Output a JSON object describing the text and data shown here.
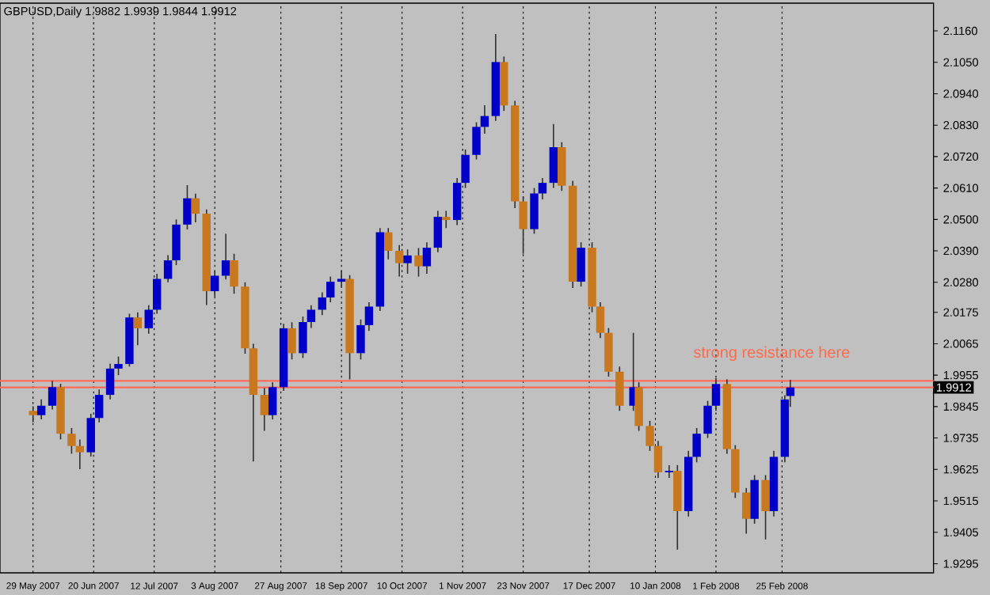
{
  "chart_data": {
    "type": "candlestick",
    "title": "GBPUSD,Daily 1.9882 1.9939 1.9844 1.9912",
    "x": [
      "2007-05-29",
      "2007-06-01",
      "2007-06-05",
      "2007-06-08",
      "2007-06-12",
      "2007-06-15",
      "2007-06-19",
      "2007-06-22",
      "2007-06-26",
      "2007-06-29",
      "2007-07-03",
      "2007-07-06",
      "2007-07-10",
      "2007-07-13",
      "2007-07-17",
      "2007-07-20",
      "2007-07-24",
      "2007-07-27",
      "2007-07-31",
      "2007-08-03",
      "2007-08-07",
      "2007-08-10",
      "2007-08-14",
      "2007-08-17",
      "2007-08-21",
      "2007-08-24",
      "2007-08-28",
      "2007-08-31",
      "2007-09-04",
      "2007-09-07",
      "2007-09-11",
      "2007-09-14",
      "2007-09-18",
      "2007-09-21",
      "2007-09-25",
      "2007-09-28",
      "2007-10-02",
      "2007-10-05",
      "2007-10-09",
      "2007-10-12",
      "2007-10-16",
      "2007-10-19",
      "2007-10-23",
      "2007-10-26",
      "2007-10-30",
      "2007-11-02",
      "2007-11-06",
      "2007-11-09",
      "2007-11-13",
      "2007-11-16",
      "2007-11-20",
      "2007-11-23",
      "2007-11-27",
      "2007-11-30",
      "2007-12-04",
      "2007-12-07",
      "2007-12-11",
      "2007-12-14",
      "2007-12-18",
      "2007-12-21",
      "2007-12-24",
      "2007-12-28",
      "2008-01-02",
      "2008-01-04",
      "2008-01-08",
      "2008-01-11",
      "2008-01-15",
      "2008-01-18",
      "2008-01-22",
      "2008-01-25",
      "2008-01-29",
      "2008-02-01",
      "2008-02-05",
      "2008-02-08",
      "2008-02-12",
      "2008-02-15",
      "2008-02-19",
      "2008-02-22",
      "2008-02-26",
      "2008-02-28"
    ],
    "ohlc": [
      [
        1.983,
        1.9846,
        1.979,
        1.9815
      ],
      [
        1.9815,
        1.987,
        1.98,
        1.9848
      ],
      [
        1.9848,
        1.9935,
        1.9835,
        1.9913
      ],
      [
        1.9913,
        1.9925,
        1.973,
        1.975
      ],
      [
        1.975,
        1.977,
        1.968,
        1.9707
      ],
      [
        1.9707,
        1.973,
        1.9626,
        1.9685
      ],
      [
        1.9685,
        1.982,
        1.967,
        1.9805
      ],
      [
        1.9805,
        1.9905,
        1.979,
        1.9886
      ],
      [
        1.9886,
        1.9995,
        1.987,
        1.9978
      ],
      [
        1.9978,
        2.002,
        1.9955,
        1.9994
      ],
      [
        1.9994,
        2.017,
        1.9985,
        2.0157
      ],
      [
        2.0157,
        2.0175,
        2.006,
        2.0119
      ],
      [
        2.0119,
        2.02,
        2.01,
        2.0184
      ],
      [
        2.0184,
        2.031,
        2.017,
        2.0292
      ],
      [
        2.0292,
        2.0375,
        2.028,
        2.0357
      ],
      [
        2.0357,
        2.05,
        2.034,
        2.0482
      ],
      [
        2.0482,
        2.062,
        2.0465,
        2.0574
      ],
      [
        2.0574,
        2.059,
        2.049,
        2.052
      ],
      [
        2.052,
        2.0535,
        2.02,
        2.0249
      ],
      [
        2.0249,
        2.032,
        2.023,
        2.0303
      ],
      [
        2.0303,
        2.045,
        2.029,
        2.0357
      ],
      [
        2.0357,
        2.038,
        2.024,
        2.0265
      ],
      [
        2.0265,
        2.028,
        2.003,
        2.0049
      ],
      [
        2.0049,
        2.0065,
        1.9653,
        1.9886
      ],
      [
        1.9886,
        1.991,
        1.976,
        1.9815
      ],
      [
        1.9815,
        1.993,
        1.98,
        1.9913
      ],
      [
        1.9913,
        2.0135,
        1.99,
        2.0119
      ],
      [
        2.0119,
        2.014,
        2.001,
        2.0032
      ],
      [
        2.0032,
        2.016,
        2.0015,
        2.0141
      ],
      [
        2.0141,
        2.02,
        2.012,
        2.0184
      ],
      [
        2.0184,
        2.0245,
        2.0165,
        2.0227
      ],
      [
        2.0227,
        2.03,
        2.021,
        2.0282
      ],
      [
        2.0282,
        2.032,
        2.0265,
        2.0292
      ],
      [
        2.0292,
        2.0305,
        1.994,
        2.0032
      ],
      [
        2.0032,
        2.015,
        2.001,
        2.013
      ],
      [
        2.013,
        2.021,
        2.011,
        2.0195
      ],
      [
        2.0195,
        2.047,
        2.018,
        2.0455
      ],
      [
        2.0455,
        2.047,
        2.036,
        2.039
      ],
      [
        2.039,
        2.041,
        2.03,
        2.0347
      ],
      [
        2.0347,
        2.0395,
        2.031,
        2.0374
      ],
      [
        2.0374,
        2.04,
        2.03,
        2.0336
      ],
      [
        2.0336,
        2.042,
        2.031,
        2.0401
      ],
      [
        2.0401,
        2.053,
        2.0385,
        2.0509
      ],
      [
        2.0509,
        2.053,
        2.047,
        2.0498
      ],
      [
        2.0498,
        2.0645,
        2.048,
        2.0628
      ],
      [
        2.0628,
        2.0745,
        2.061,
        2.0726
      ],
      [
        2.0726,
        2.084,
        2.071,
        2.0824
      ],
      [
        2.0824,
        2.09,
        2.08,
        2.0862
      ],
      [
        2.0862,
        2.1149,
        2.0845,
        2.1051
      ],
      [
        2.1051,
        2.107,
        2.088,
        2.0899
      ],
      [
        2.0899,
        2.0915,
        2.054,
        2.0563
      ],
      [
        2.0563,
        2.058,
        2.038,
        2.0466
      ],
      [
        2.0466,
        2.061,
        2.045,
        2.0591
      ],
      [
        2.0591,
        2.0645,
        2.057,
        2.0628
      ],
      [
        2.0628,
        2.0834,
        2.061,
        2.0753
      ],
      [
        2.0753,
        2.077,
        2.06,
        2.0618
      ],
      [
        2.0618,
        2.0635,
        2.026,
        2.0282
      ],
      [
        2.0282,
        2.042,
        2.0265,
        2.0401
      ],
      [
        2.0401,
        2.042,
        2.0175,
        2.0195
      ],
      [
        2.0195,
        2.021,
        2.0085,
        2.0103
      ],
      [
        2.0103,
        2.012,
        1.995,
        1.9967
      ],
      [
        1.9967,
        1.9985,
        1.983,
        1.9848
      ],
      [
        1.9848,
        2.0103,
        1.983,
        1.9913
      ],
      [
        1.9913,
        1.993,
        1.976,
        1.9777
      ],
      [
        1.9777,
        1.9795,
        1.969,
        1.9707
      ],
      [
        1.9707,
        1.9725,
        1.9595,
        1.9615
      ],
      [
        1.9615,
        1.964,
        1.9595,
        1.962
      ],
      [
        1.962,
        1.964,
        1.9344,
        1.9479
      ],
      [
        1.9479,
        1.969,
        1.946,
        1.9669
      ],
      [
        1.9669,
        1.977,
        1.965,
        1.975
      ],
      [
        1.975,
        1.9865,
        1.9735,
        1.9848
      ],
      [
        1.9848,
        1.9945,
        1.983,
        1.9924
      ],
      [
        1.9924,
        1.994,
        1.968,
        1.9696
      ],
      [
        1.9696,
        1.971,
        1.9525,
        1.9544
      ],
      [
        1.9544,
        1.956,
        1.94,
        1.9452
      ],
      [
        1.9452,
        1.9605,
        1.9435,
        1.9588
      ],
      [
        1.9588,
        1.9605,
        1.938,
        1.9479
      ],
      [
        1.9479,
        1.969,
        1.946,
        1.9669
      ],
      [
        1.9669,
        1.9885,
        1.965,
        1.987
      ],
      [
        1.9882,
        1.9939,
        1.9844,
        1.9912
      ]
    ],
    "colors": [
      "#c8781e",
      "#0000c8",
      "#0000c8",
      "#c8781e",
      "#c8781e",
      "#c8781e",
      "#0000c8",
      "#0000c8",
      "#0000c8",
      "#0000c8",
      "#0000c8",
      "#c8781e",
      "#0000c8",
      "#0000c8",
      "#0000c8",
      "#0000c8",
      "#0000c8",
      "#c8781e",
      "#c8781e",
      "#0000c8",
      "#0000c8",
      "#c8781e",
      "#c8781e",
      "#c8781e",
      "#c8781e",
      "#0000c8",
      "#0000c8",
      "#c8781e",
      "#0000c8",
      "#0000c8",
      "#0000c8",
      "#0000c8",
      "#0000c8",
      "#c8781e",
      "#0000c8",
      "#0000c8",
      "#0000c8",
      "#c8781e",
      "#c8781e",
      "#0000c8",
      "#c8781e",
      "#0000c8",
      "#0000c8",
      "#c8781e",
      "#0000c8",
      "#0000c8",
      "#0000c8",
      "#0000c8",
      "#0000c8",
      "#c8781e",
      "#c8781e",
      "#c8781e",
      "#0000c8",
      "#0000c8",
      "#0000c8",
      "#c8781e",
      "#c8781e",
      "#0000c8",
      "#c8781e",
      "#c8781e",
      "#c8781e",
      "#c8781e",
      "#0000c8",
      "#c8781e",
      "#c8781e",
      "#c8781e",
      "#0000c8",
      "#c8781e",
      "#0000c8",
      "#0000c8",
      "#0000c8",
      "#0000c8",
      "#c8781e",
      "#c8781e",
      "#c8781e",
      "#0000c8",
      "#c8781e",
      "#0000c8",
      "#0000c8",
      "#0000c8"
    ],
    "xlim": [
      "2007-05-17",
      "2008-04-20"
    ],
    "xticks": [
      {
        "value": "2007-05-29",
        "label": "29 May 2007"
      },
      {
        "value": "2007-06-20",
        "label": "20 Jun 2007"
      },
      {
        "value": "2007-07-12",
        "label": "12 Jul 2007"
      },
      {
        "value": "2007-08-03",
        "label": "3 Aug 2007"
      },
      {
        "value": "2007-08-27",
        "label": "27 Aug 2007"
      },
      {
        "value": "2007-09-18",
        "label": "18 Sep 2007"
      },
      {
        "value": "2007-10-10",
        "label": "10 Oct 2007"
      },
      {
        "value": "2007-11-01",
        "label": "1 Nov 2007"
      },
      {
        "value": "2007-11-23",
        "label": "23 Nov 2007"
      },
      {
        "value": "2007-12-17",
        "label": "17 Dec 2007"
      },
      {
        "value": "2008-01-10",
        "label": "10 Jan 2008"
      },
      {
        "value": "2008-02-01",
        "label": "1 Feb 2008"
      },
      {
        "value": "2008-02-25",
        "label": "25 Feb 2008"
      }
    ],
    "ylim": [
      1.9263,
      2.1257
    ],
    "yticks": [
      {
        "value": 1.9295,
        "label": "1.9295"
      },
      {
        "value": 1.9405,
        "label": "1.9405"
      },
      {
        "value": 1.9515,
        "label": "1.9515"
      },
      {
        "value": 1.9625,
        "label": "1.9625"
      },
      {
        "value": 1.9735,
        "label": "1.9735"
      },
      {
        "value": 1.9845,
        "label": "1.9845"
      },
      {
        "value": 1.9955,
        "label": "1.9955"
      },
      {
        "value": 2.0065,
        "label": "2.0065"
      },
      {
        "value": 2.0175,
        "label": "2.0175"
      },
      {
        "value": 2.028,
        "label": "2.0280"
      },
      {
        "value": 2.039,
        "label": "2.0390"
      },
      {
        "value": 2.05,
        "label": "2.0500"
      },
      {
        "value": 2.061,
        "label": "2.0610"
      },
      {
        "value": 2.072,
        "label": "2.0720"
      },
      {
        "value": 2.083,
        "label": "2.0830"
      },
      {
        "value": 2.094,
        "label": "2.0940"
      },
      {
        "value": 2.105,
        "label": "2.1050"
      },
      {
        "value": 2.116,
        "label": "2.1160"
      }
    ],
    "grid": "x",
    "ref_lines": [
      {
        "axis": "y",
        "value": 1.9935,
        "label": null,
        "color": "#ff6a5a"
      },
      {
        "axis": "y",
        "value": 1.9912,
        "label": "1.9912",
        "color": "#ff6a5a"
      }
    ],
    "annotations": [
      "strong resistance here"
    ]
  }
}
